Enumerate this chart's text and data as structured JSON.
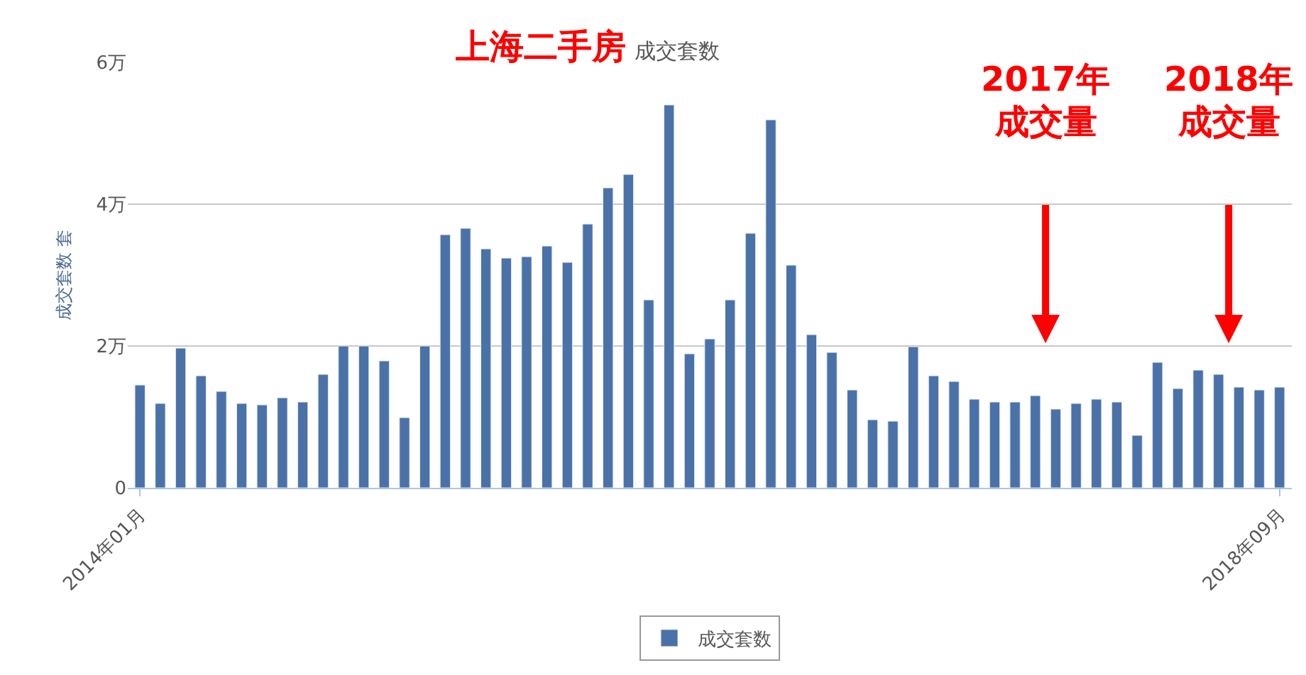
{
  "chart_data": {
    "type": "bar",
    "title": "上海二手房",
    "subtitle": "成交套数",
    "ylabel": "成交套数 套",
    "categories": [
      "2014年01月",
      null,
      null,
      null,
      null,
      null,
      null,
      null,
      null,
      null,
      null,
      null,
      null,
      null,
      null,
      null,
      null,
      null,
      null,
      null,
      null,
      null,
      null,
      null,
      null,
      null,
      null,
      null,
      null,
      null,
      null,
      null,
      null,
      null,
      null,
      null,
      null,
      null,
      null,
      null,
      null,
      null,
      null,
      null,
      null,
      null,
      null,
      null,
      null,
      null,
      null,
      null,
      null,
      null,
      null,
      null,
      "2018年09月"
    ],
    "series": [
      {
        "name": "成交套数",
        "color": "#4a72a8",
        "values": [
          1.45,
          1.19,
          1.97,
          1.58,
          1.36,
          1.19,
          1.17,
          1.27,
          1.21,
          1.6,
          2.0,
          2.0,
          1.79,
          0.99,
          2.0,
          3.57,
          3.66,
          3.37,
          3.24,
          3.26,
          3.41,
          3.18,
          3.72,
          4.23,
          4.42,
          2.65,
          5.4,
          1.89,
          2.1,
          2.65,
          3.59,
          5.19,
          3.14,
          2.16,
          1.91,
          1.38,
          0.96,
          0.94,
          1.99,
          1.58,
          1.5,
          1.25,
          1.21,
          1.21,
          1.3,
          1.11,
          1.19,
          1.25,
          1.21,
          0.74,
          1.77,
          1.4,
          1.66,
          1.6,
          1.42,
          1.38,
          1.42
        ]
      }
    ],
    "ylim": [
      0,
      6
    ],
    "yticks": [
      0,
      {
        "value": 2,
        "label": "2万"
      },
      {
        "value": 4,
        "label": "4万"
      },
      {
        "value": 6,
        "label": "6万"
      }
    ],
    "grid": "y",
    "legend": "bottom",
    "annotations": [
      "2017年",
      "成交量",
      "2018年",
      "成交量"
    ]
  }
}
